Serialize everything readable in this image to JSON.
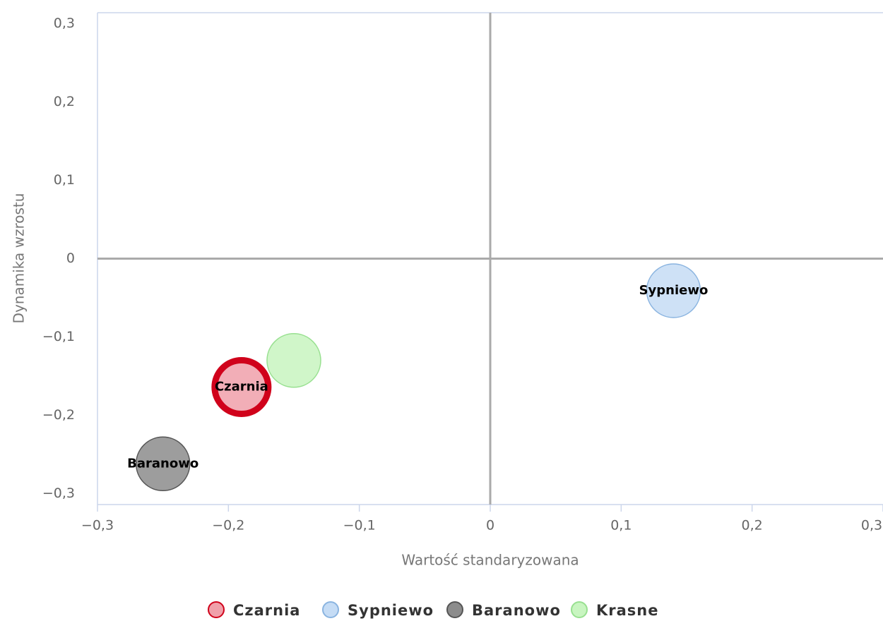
{
  "chart_data": {
    "type": "scatter",
    "x_label": "Wartość standaryzowana",
    "y_label": "Dynamika wzrostu",
    "xlim": [
      -0.3,
      0.3
    ],
    "ylim": [
      -0.314,
      0.314
    ],
    "xticks": [
      {
        "value": -0.3,
        "label": "−0,3"
      },
      {
        "value": -0.2,
        "label": "−0,2"
      },
      {
        "value": -0.1,
        "label": "−0,1"
      },
      0,
      {
        "value": 0.1,
        "label": "0,1"
      },
      {
        "value": 0.2,
        "label": "0,2"
      },
      {
        "value": 0.3,
        "label": "0,3"
      }
    ],
    "yticks": [
      {
        "value": -0.3,
        "label": "−0,3"
      },
      {
        "value": -0.2,
        "label": "−0,2"
      },
      {
        "value": -0.1,
        "label": "−0,1"
      },
      0,
      {
        "value": 0.1,
        "label": "0,1"
      },
      {
        "value": 0.2,
        "label": "0,2"
      },
      {
        "value": 0.3,
        "label": "0,3"
      }
    ],
    "zero_lines": true,
    "legend": "bottom",
    "series": [
      {
        "name": "Czarnia",
        "color": "#f0a0aa",
        "border": "#d0021b",
        "highlight": true,
        "show_label": true,
        "x": [
          -0.19
        ],
        "values": [
          -0.164
        ]
      },
      {
        "name": "Sypniewo",
        "color": "#c5dcf5",
        "border": "#8ab4e0",
        "highlight": false,
        "show_label": true,
        "x": [
          0.14
        ],
        "values": [
          -0.041
        ]
      },
      {
        "name": "Baranowo",
        "color": "#8c8c8c",
        "border": "#555555",
        "highlight": false,
        "show_label": true,
        "x": [
          -0.25
        ],
        "values": [
          -0.262
        ]
      },
      {
        "name": "Krasne",
        "color": "#c8f5c0",
        "border": "#98e090",
        "highlight": false,
        "show_label": false,
        "x": [
          -0.15
        ],
        "values": [
          -0.13
        ]
      }
    ]
  }
}
